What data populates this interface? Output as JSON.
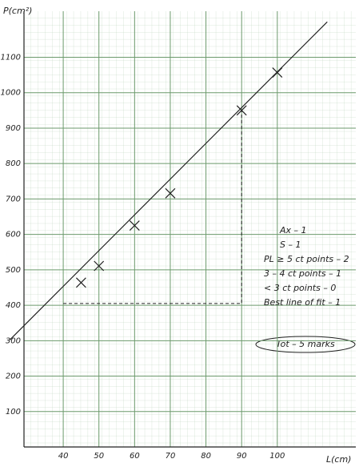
{
  "chart_data": {
    "type": "scatter",
    "y_label": "P(cm²)",
    "x_label": "L(cm)",
    "x": [
      45,
      50,
      60,
      70,
      90,
      100
    ],
    "values": [
      464,
      511,
      625,
      716,
      950,
      1057
    ],
    "color": "#222222",
    "fit_line": {
      "x": [
        25,
        114
      ],
      "y": [
        302,
        1200
      ]
    },
    "guide": {
      "x": [
        40,
        90,
        90
      ],
      "y": [
        405,
        405,
        950
      ]
    },
    "xlim": [
      29,
      122
    ],
    "ylim": [
      0,
      1230
    ],
    "xticks": [
      40,
      50,
      60,
      70,
      80,
      90,
      100
    ],
    "yticks": [
      100,
      200,
      300,
      400,
      500,
      600,
      700,
      800,
      900,
      1000,
      1100
    ],
    "grid": true,
    "grid_color": "#6c9a6c",
    "annotations": [
      "Ax – 1",
      "S – 1",
      "PL ≥ 5 ct points – 2",
      "3 – 4 ct points – 1",
      "< 3 ct points – 0",
      "Best line of fit – 1"
    ],
    "total": "Tot – 5 marks"
  }
}
